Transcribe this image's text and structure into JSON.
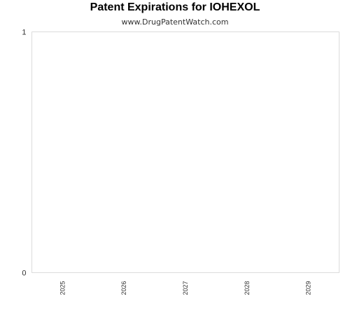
{
  "chart_data": {
    "type": "bar",
    "title": "Patent Expirations for IOHEXOL",
    "subtitle": "www.DrugPatentWatch.com",
    "categories": [
      "2025",
      "2026",
      "2027",
      "2028",
      "2029"
    ],
    "values": [
      0,
      0,
      0,
      0,
      0
    ],
    "ylim": [
      0,
      1
    ],
    "y_ticks": [
      "0",
      "1"
    ],
    "xlabel": "",
    "ylabel": "",
    "grid": false,
    "legend": "none",
    "colors": {
      "border": "#dcdcdc",
      "bar": "#3366cc"
    }
  }
}
